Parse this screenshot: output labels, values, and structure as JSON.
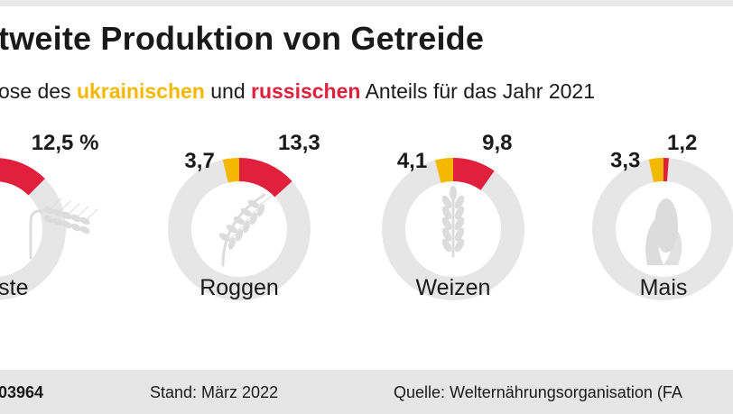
{
  "header": {
    "title": "tweite Produktion von Getreide",
    "subtitle_pre": "ose des ",
    "subtitle_uk": "ukrainischen",
    "subtitle_mid": " und ",
    "subtitle_ru": "russischen",
    "subtitle_post": " Anteils für das Jahr 2021"
  },
  "footer": {
    "id": "03964",
    "stand": "Stand: März 2022",
    "source": "Quelle: Welternährungsorganisation (FA"
  },
  "colors": {
    "ukraine": "#f5b800",
    "russia": "#e0203c",
    "ring": "#e6e6e6",
    "icon": "#dcdcdc"
  },
  "chart_data": {
    "type": "pie",
    "title": "tweite Produktion von Getreide",
    "series": [
      {
        "name": "ukrainischen",
        "color": "#f5b800"
      },
      {
        "name": "russischen",
        "color": "#e0203c"
      }
    ],
    "categories": [
      {
        "name": "Gerste",
        "ukraine": null,
        "russia": 12.5,
        "ukraine_label": "",
        "russia_label": "12,5 %",
        "icon": "barley-icon"
      },
      {
        "name": "Roggen",
        "ukraine": 3.7,
        "russia": 13.3,
        "ukraine_label": "3,7",
        "russia_label": "13,3",
        "icon": "rye-icon"
      },
      {
        "name": "Weizen",
        "ukraine": 4.1,
        "russia": 9.8,
        "ukraine_label": "4,1",
        "russia_label": "9,8",
        "icon": "wheat-icon"
      },
      {
        "name": "Mais",
        "ukraine": 3.3,
        "russia": 1.2,
        "ukraine_label": "3,3",
        "russia_label": "1,2",
        "icon": "corn-icon"
      }
    ]
  }
}
